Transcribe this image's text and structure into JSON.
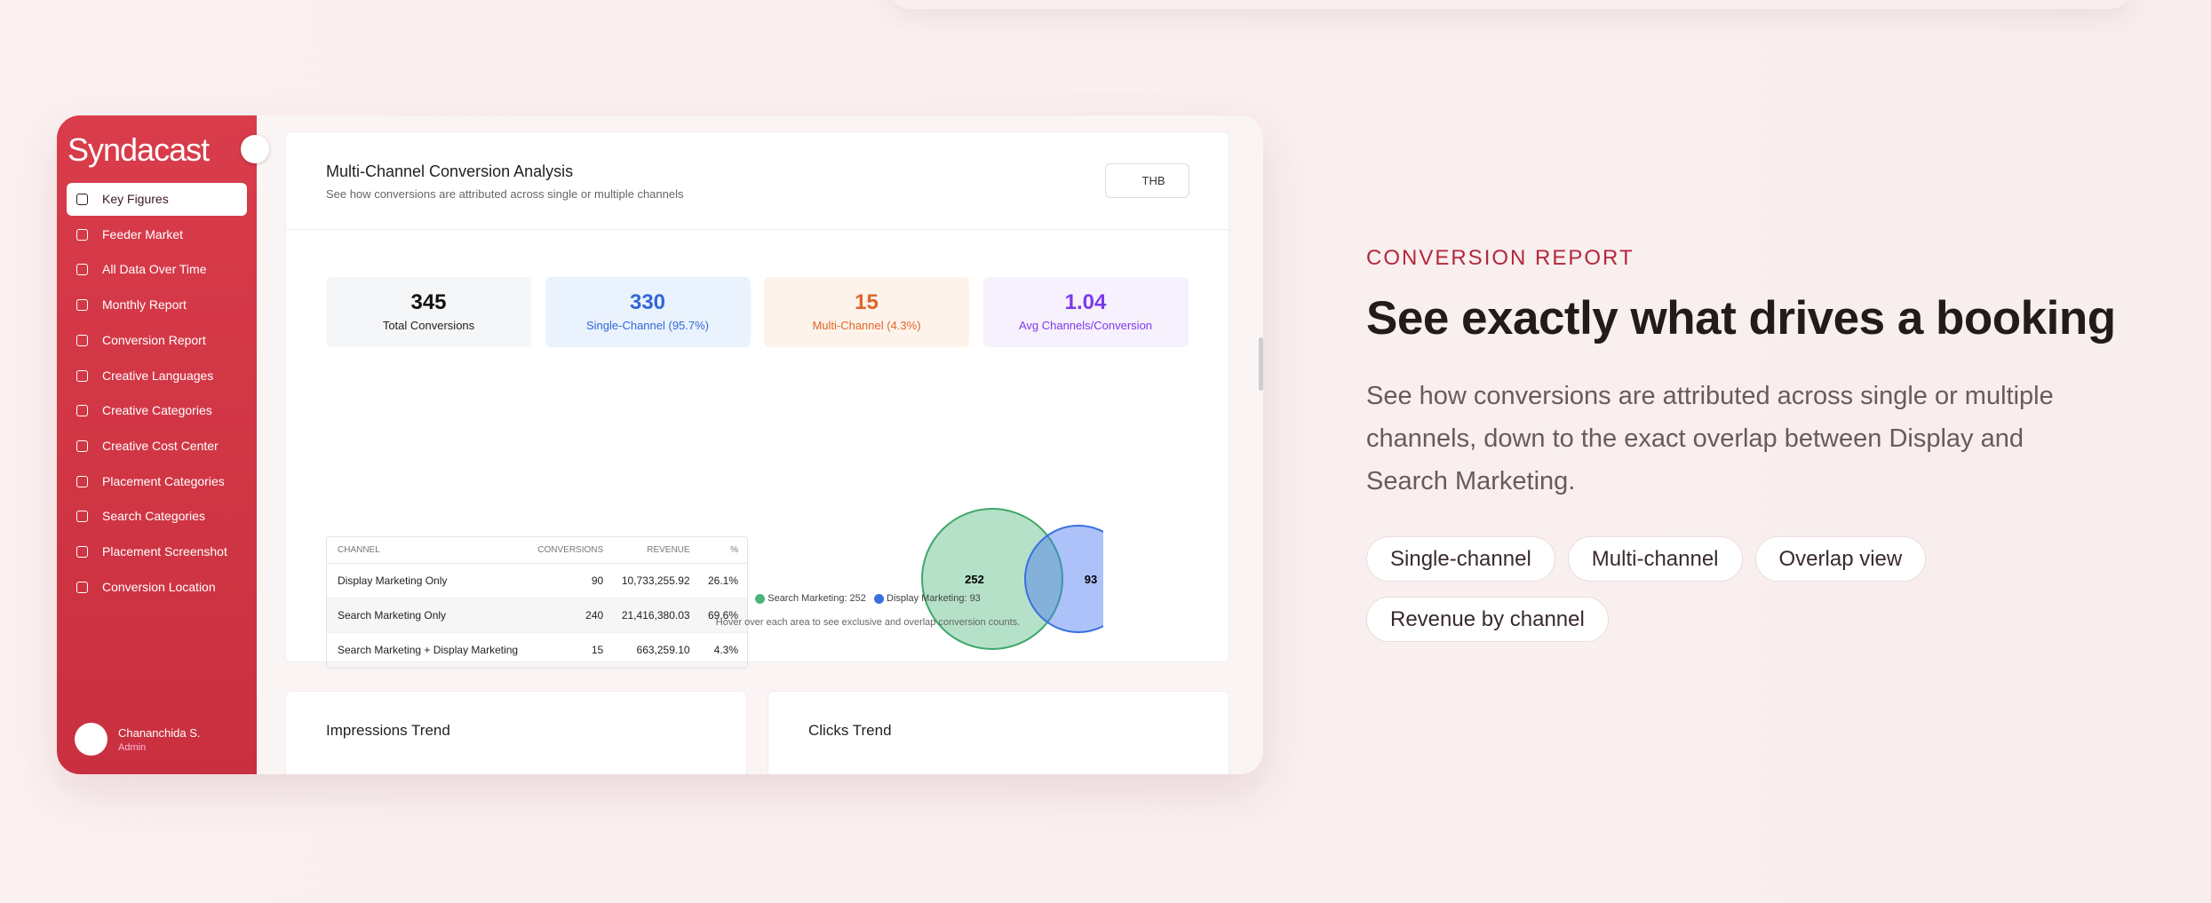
{
  "sidebar": {
    "logo": "Syndacast",
    "menu": [
      "Key Figures",
      "Feeder Market",
      "All Data Over Time",
      "Monthly Report",
      "Conversion Report",
      "Creative Languages",
      "Creative Categories",
      "Creative Cost Center",
      "Placement Categories",
      "Search Categories",
      "Placement Screenshot",
      "Conversion Location"
    ],
    "user": {
      "name": "Chananchida S.",
      "role": "Admin"
    }
  },
  "panel": {
    "title": "Multi-Channel Conversion Analysis",
    "subtitle": "See how conversions are attributed across single or multiple channels",
    "currency": "THB",
    "stats": [
      {
        "value": 345,
        "label": "Total Conversions"
      },
      {
        "value": 330,
        "label": "Single-Channel (95.7%)"
      },
      {
        "value": 15,
        "label": "Multi-Channel (4.3%)"
      },
      {
        "value": 1.04,
        "label": "Avg Channels/Conversion"
      }
    ],
    "table": {
      "headers": [
        "CHANNEL",
        "CONVERSIONS",
        "REVENUE",
        "%"
      ],
      "rows": [
        [
          "Display Marketing Only",
          "90",
          "10,733,255.92",
          "26.1%"
        ],
        [
          "Search Marketing Only",
          "240",
          "21,416,380.03",
          "69.6%"
        ],
        [
          "Search Marketing + Display Marketing",
          "15",
          "663,259.10",
          "4.3%"
        ]
      ]
    },
    "venn": {
      "search": 252,
      "display": 93,
      "legend": [
        "Search Marketing: 252",
        "Display Marketing: 93"
      ],
      "note": "Hover over each area to see exclusive and overlap conversion counts."
    }
  },
  "cards": [
    "Impressions Trend",
    "Clicks Trend"
  ],
  "promo": {
    "eyebrow": "CONVERSION REPORT",
    "heading": "See exactly what drives a booking",
    "body": "See how conversions are attributed across single or multiple channels, down to the exact overlap between Display and Search Marketing.",
    "tags": [
      "Single-channel",
      "Multi-channel",
      "Overlap view",
      "Revenue by channel"
    ]
  }
}
